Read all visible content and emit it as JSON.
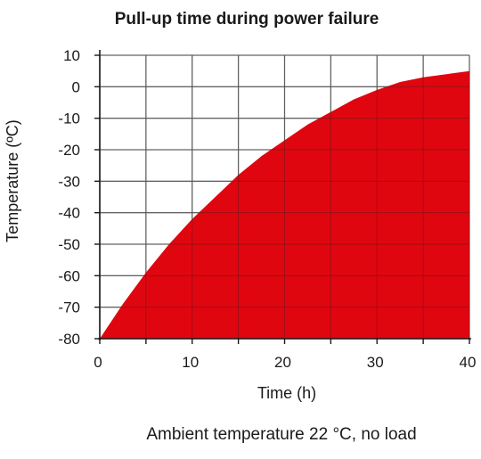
{
  "chart_data": {
    "type": "area",
    "title": "Pull-up time during power failure",
    "xlabel": "Time (h)",
    "ylabel": "Temperature (ºC)",
    "note": "Ambient temperature 22 °C, no load",
    "xlim": [
      0,
      40
    ],
    "ylim": [
      -80,
      10
    ],
    "x_ticks": [
      0,
      10,
      20,
      30,
      40
    ],
    "y_ticks": [
      10,
      0,
      -10,
      -20,
      -30,
      -40,
      -50,
      -60,
      -70,
      -80
    ],
    "grid": true,
    "series": [
      {
        "x": [
          0,
          2.5,
          5,
          7.5,
          10,
          12.5,
          15,
          17.5,
          20,
          22.5,
          25,
          27.5,
          30,
          32.5,
          35,
          37.5,
          40
        ],
        "y": [
          -80,
          -69,
          -59,
          -50,
          -42,
          -35,
          -28,
          -22,
          -17,
          -12,
          -8,
          -4,
          -1,
          1.5,
          3,
          4,
          5
        ],
        "color": "#e0060f"
      }
    ],
    "grid_color": "#7f7f7f",
    "axis_color": "#1a1a1a"
  }
}
